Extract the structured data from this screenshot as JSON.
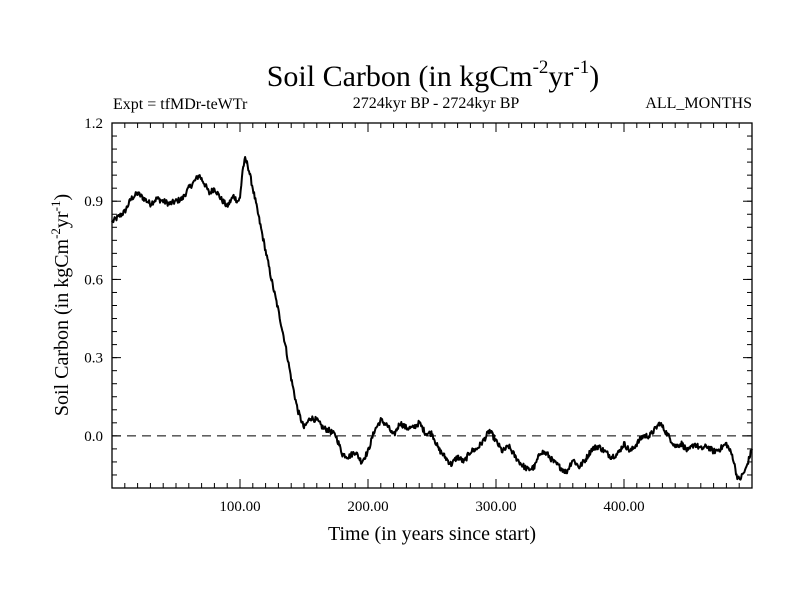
{
  "chart_data": {
    "type": "line",
    "title": {
      "main": "Soil Carbon (in kgCm",
      "sup1": "-2",
      "mid": "yr",
      "sup2": "-1",
      "end": ")"
    },
    "ylabel": {
      "main": "Soil Carbon (in kgCm",
      "sup1": "-2",
      "mid": "yr",
      "sup2": "-1",
      "end": ")"
    },
    "xlabel": "Time (in years since start)",
    "header_left": "Expt = tfMDr-teWTr",
    "header_center": "2724kyr BP - 2724kyr BP",
    "header_right": "ALL_MONTHS",
    "xlim": [
      0,
      500
    ],
    "ylim": [
      -0.2,
      1.2
    ],
    "x_ticks": [
      100,
      200,
      300,
      400
    ],
    "x_tick_labels": [
      "100.00",
      "200.00",
      "300.00",
      "400.00"
    ],
    "y_ticks": [
      0.0,
      0.3,
      0.6,
      0.9,
      1.2
    ],
    "y_tick_labels": [
      "0.0",
      "0.3",
      "0.6",
      "0.9",
      "1.2"
    ],
    "reference_line": {
      "y": 0.0,
      "style": "dashed"
    },
    "series": [
      {
        "name": "Soil Carbon",
        "color": "#000000",
        "x": [
          0,
          5,
          10,
          15,
          20,
          25,
          30,
          35,
          40,
          45,
          50,
          55,
          60,
          65,
          68,
          72,
          76,
          80,
          85,
          90,
          95,
          98,
          100,
          102,
          104,
          106,
          110,
          115,
          120,
          125,
          130,
          135,
          140,
          145,
          150,
          155,
          160,
          165,
          170,
          175,
          180,
          185,
          190,
          195,
          200,
          205,
          210,
          215,
          220,
          225,
          230,
          235,
          240,
          245,
          250,
          255,
          260,
          265,
          270,
          275,
          280,
          285,
          290,
          295,
          300,
          305,
          310,
          315,
          320,
          325,
          330,
          335,
          340,
          345,
          350,
          355,
          360,
          365,
          370,
          375,
          380,
          385,
          390,
          395,
          400,
          405,
          410,
          415,
          420,
          425,
          428,
          432,
          436,
          440,
          445,
          450,
          455,
          460,
          465,
          470,
          475,
          480,
          485,
          488,
          490,
          495,
          500
        ],
        "values": [
          0.82,
          0.84,
          0.86,
          0.91,
          0.93,
          0.91,
          0.89,
          0.91,
          0.9,
          0.89,
          0.9,
          0.91,
          0.95,
          0.98,
          1.0,
          0.97,
          0.93,
          0.95,
          0.91,
          0.88,
          0.92,
          0.9,
          0.91,
          1.02,
          1.06,
          1.04,
          0.95,
          0.83,
          0.71,
          0.59,
          0.48,
          0.36,
          0.22,
          0.1,
          0.03,
          0.07,
          0.06,
          0.03,
          0.02,
          0.0,
          -0.07,
          -0.08,
          -0.06,
          -0.1,
          -0.06,
          0.02,
          0.06,
          0.04,
          0.0,
          0.05,
          0.03,
          0.03,
          0.05,
          0.01,
          0.01,
          -0.05,
          -0.08,
          -0.11,
          -0.08,
          -0.1,
          -0.06,
          -0.05,
          -0.02,
          0.02,
          -0.02,
          -0.06,
          -0.04,
          -0.08,
          -0.11,
          -0.13,
          -0.12,
          -0.06,
          -0.07,
          -0.1,
          -0.12,
          -0.14,
          -0.09,
          -0.12,
          -0.09,
          -0.05,
          -0.04,
          -0.06,
          -0.08,
          -0.07,
          -0.03,
          -0.06,
          -0.03,
          0.0,
          0.0,
          0.03,
          0.05,
          0.02,
          -0.01,
          -0.04,
          -0.03,
          -0.06,
          -0.03,
          -0.05,
          -0.04,
          -0.06,
          -0.05,
          -0.03,
          -0.08,
          -0.15,
          -0.17,
          -0.13,
          -0.05
        ]
      }
    ]
  }
}
